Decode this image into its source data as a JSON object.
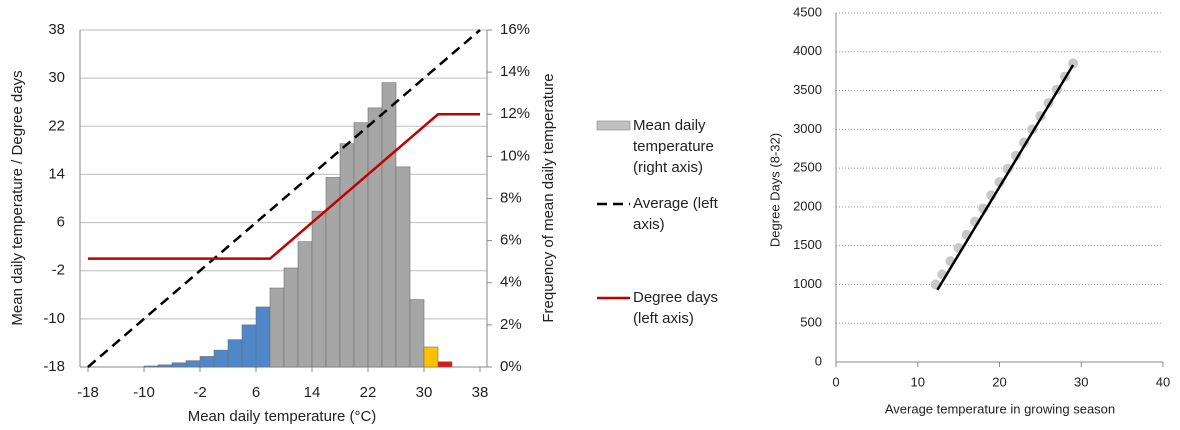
{
  "chart_data": [
    {
      "type": "combo",
      "xlabel": "Mean daily temperature (°C)",
      "ylabel": "Mean daily temperature / Degree days",
      "y2label": "Frequency of mean daily temperature",
      "xlim": [
        -18,
        38
      ],
      "xticks": [
        -18,
        -10,
        -2,
        6,
        14,
        22,
        30,
        38
      ],
      "ylim": [
        -18,
        38
      ],
      "yticks": [
        -18,
        -10,
        -2,
        6,
        14,
        22,
        30,
        38
      ],
      "y2lim": [
        0,
        16
      ],
      "y2ticks": [
        {
          "value": 0,
          "label": "0%"
        },
        {
          "value": 2,
          "label": "2%"
        },
        {
          "value": 4,
          "label": "4%"
        },
        {
          "value": 6,
          "label": "6%"
        },
        {
          "value": 8,
          "label": "8%"
        },
        {
          "value": 10,
          "label": "10%"
        },
        {
          "value": 12,
          "label": "12%"
        },
        {
          "value": 14,
          "label": "14%"
        },
        {
          "value": 16,
          "label": "16%"
        }
      ],
      "grid": "solid",
      "legend": "right",
      "series": [
        {
          "name": "Mean daily temperature (right axis)",
          "type": "histogram",
          "axis": "y2",
          "color": "#c0c0c0",
          "bins": [
            -10,
            -8,
            -6,
            -4,
            -2,
            0,
            2,
            4,
            6,
            8,
            10,
            12,
            14,
            16,
            18,
            20,
            22,
            24,
            26,
            28,
            30,
            32,
            34
          ],
          "values": [
            0.05,
            0.1,
            0.2,
            0.3,
            0.5,
            0.8,
            1.3,
            2.0,
            2.85,
            3.75,
            4.7,
            5.95,
            7.4,
            9.0,
            10.6,
            11.6,
            12.3,
            13.5,
            9.5,
            3.2,
            0.95,
            0.25
          ],
          "colors": [
            "#4f87c8",
            "#4f87c8",
            "#4f87c8",
            "#4f87c8",
            "#4f87c8",
            "#4f87c8",
            "#4f87c8",
            "#4f87c8",
            "#4f87c8",
            "#a6a6a6",
            "#a6a6a6",
            "#a6a6a6",
            "#a6a6a6",
            "#a6a6a6",
            "#a6a6a6",
            "#a6a6a6",
            "#a6a6a6",
            "#a6a6a6",
            "#a6a6a6",
            "#a6a6a6",
            "#ffc000",
            "#e0141e"
          ]
        },
        {
          "name": "Average (left axis)",
          "type": "line",
          "dashed": true,
          "color": "#000000",
          "x": [
            -18,
            38
          ],
          "y": [
            -18,
            38
          ]
        },
        {
          "name": "Degree days (left axis)",
          "type": "line",
          "dashed": false,
          "color": "#c00000",
          "x": [
            -18,
            8,
            32,
            38
          ],
          "y": [
            0,
            0,
            24,
            24
          ]
        }
      ]
    },
    {
      "type": "scatter",
      "xlabel": "Average temperature in growing season",
      "ylabel": "Degree Days (8-32)",
      "xlim": [
        0,
        40
      ],
      "xticks": [
        0,
        10,
        20,
        30,
        40
      ],
      "ylim": [
        0,
        4500
      ],
      "yticks": [
        0,
        500,
        1000,
        1500,
        2000,
        2500,
        3000,
        3500,
        4000,
        4500
      ],
      "grid": "dotted",
      "series": [
        {
          "type": "scatter",
          "color": "#c8c8c8",
          "x": [
            12.2,
            13,
            14,
            15,
            16,
            17,
            18,
            19,
            20,
            21,
            22,
            23,
            24,
            25,
            26,
            27,
            28,
            29
          ],
          "y": [
            1000,
            1130,
            1300,
            1470,
            1640,
            1810,
            1980,
            2150,
            2320,
            2490,
            2660,
            2830,
            3000,
            3170,
            3340,
            3510,
            3680,
            3850
          ]
        },
        {
          "type": "line",
          "dashed": false,
          "color": "#000000",
          "x": [
            12.4,
            29
          ],
          "y": [
            930,
            3830
          ]
        }
      ]
    }
  ]
}
